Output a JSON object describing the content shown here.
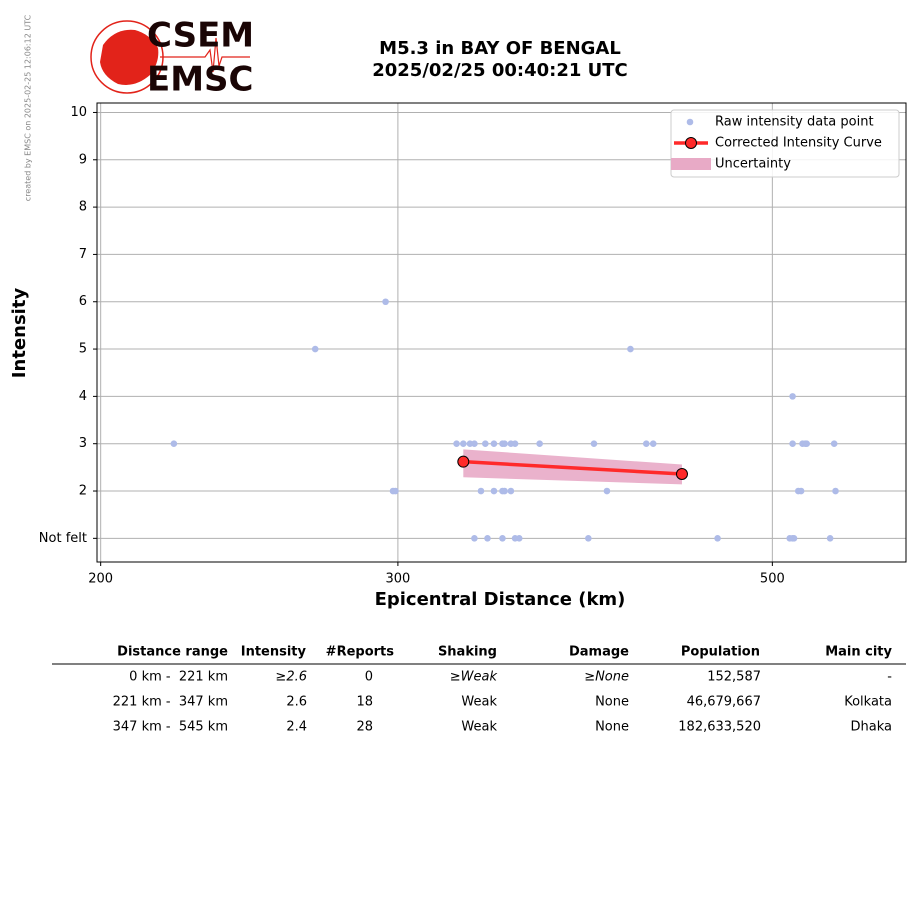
{
  "credit": "created by EMSC on 2025-02-25 12:06:12 UTC",
  "logo": {
    "top": "CSEM",
    "bottom": "EMSC"
  },
  "chart_data": {
    "type": "scatter",
    "title": "M5.3 in BAY OF BENGAL",
    "subtitle": "2025/02/25 00:40:21 UTC",
    "x_label": "Epicentral Distance (km)",
    "y_label": "Intensity",
    "xscale": "log",
    "xlim": [
      199,
      600
    ],
    "xticks": [
      200,
      300,
      500
    ],
    "ylim": [
      0.5,
      10.2
    ],
    "yticks": [
      {
        "value": 1,
        "label": "Not felt"
      },
      2,
      3,
      4,
      5,
      6,
      7,
      8,
      9,
      10
    ],
    "grid": true,
    "legend": "upper right",
    "series": [
      {
        "name": "Raw intensity data point",
        "type": "scatter",
        "color": "#aebbe8",
        "x": [
          221,
          268,
          295,
          298,
          299,
          325,
          328,
          331,
          333,
          338,
          342,
          346,
          347,
          350,
          352,
          364,
          392,
          421,
          425,
          412,
          514,
          514,
          521,
          523,
          524,
          544,
          336,
          342,
          346,
          347,
          350,
          399,
          518,
          520,
          545,
          333,
          339,
          346,
          352,
          354,
          389,
          464,
          512,
          514,
          515,
          541
        ],
        "values": [
          3,
          5,
          6,
          2,
          2,
          3,
          3,
          3,
          3,
          3,
          3,
          3,
          3,
          3,
          3,
          3,
          3,
          3,
          3,
          5,
          4,
          3,
          3,
          3,
          3,
          3,
          2,
          2,
          2,
          2,
          2,
          2,
          2,
          2,
          2,
          1,
          1,
          1,
          1,
          1,
          1,
          1,
          1,
          1,
          1,
          1
        ]
      },
      {
        "name": "Corrected Intensity Curve",
        "type": "line",
        "color": "#ff2a2a",
        "x": [
          328,
          442
        ],
        "values": [
          2.62,
          2.36
        ]
      },
      {
        "name": "Uncertainty",
        "type": "band",
        "color": "#e8aac6",
        "x": [
          328,
          442
        ],
        "upper": [
          2.88,
          2.56
        ],
        "lower": [
          2.29,
          2.14
        ]
      }
    ]
  },
  "table": {
    "headers": [
      "Distance range",
      "Intensity",
      "#Reports",
      "Shaking",
      "Damage",
      "Population",
      "Main city"
    ],
    "rows": [
      [
        "0 km -  221 km",
        "≥2.6",
        "0",
        "≥Weak",
        "≥None",
        "152,587",
        "-"
      ],
      [
        "221 km -  347 km",
        "2.6",
        "18",
        "Weak",
        "None",
        "46,679,667",
        "Kolkata"
      ],
      [
        "347 km -  545 km",
        "2.4",
        "28",
        "Weak",
        "None",
        "182,633,520",
        "Dhaka"
      ]
    ]
  }
}
